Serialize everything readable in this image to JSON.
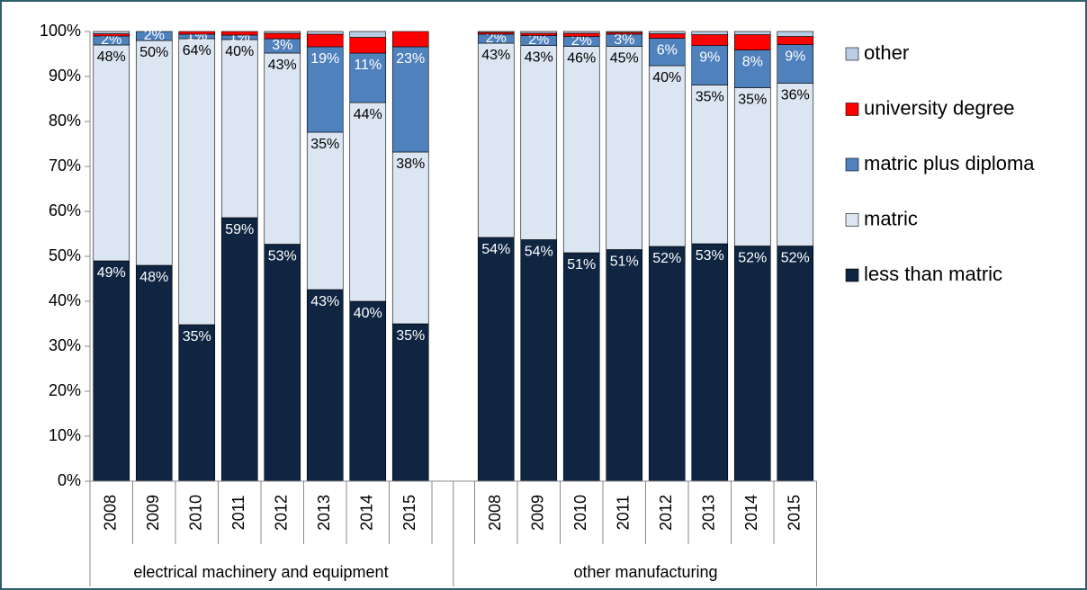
{
  "chart_data": {
    "type": "stacked_bar",
    "groups": [
      {
        "name": "electrical machinery and equipment",
        "categories": [
          "2008",
          "2009",
          "2010",
          "2011",
          "2012",
          "2013",
          "2014",
          "2015"
        ]
      },
      {
        "name": "other manufacturing",
        "categories": [
          "2008",
          "2009",
          "2010",
          "2011",
          "2012",
          "2013",
          "2014",
          "2015"
        ]
      }
    ],
    "series": [
      {
        "name": "less than matric",
        "color": "#0f2542",
        "label_color": "#ffffff",
        "values": [
          49,
          48,
          34.8,
          58.6,
          52.7,
          42.6,
          40,
          35,
          54.2,
          53.7,
          50.8,
          51.5,
          52.2,
          52.8,
          52.3,
          52.3
        ],
        "value_labels": [
          "49%",
          "48%",
          "35%",
          "59%",
          "53%",
          "43%",
          "40%",
          "35%",
          "54%",
          "54%",
          "51%",
          "51%",
          "52%",
          "53%",
          "52%",
          "52%"
        ]
      },
      {
        "name": "matric",
        "color": "#dce6f2",
        "label_color": "#000000",
        "values": [
          48,
          50,
          63.6,
          39.6,
          42.5,
          35,
          44.2,
          38.2,
          43.2,
          43.2,
          45.9,
          45.2,
          40.2,
          35.3,
          35.2,
          36.2
        ],
        "value_labels": [
          "48%",
          "50%",
          "64%",
          "40%",
          "43%",
          "35%",
          "44%",
          "38%",
          "43%",
          "43%",
          "46%",
          "45%",
          "40%",
          "35%",
          "35%",
          "36%"
        ]
      },
      {
        "name": "matric plus diploma",
        "color": "#4f81bd",
        "label_color": "#ffffff",
        "values": [
          2,
          2,
          1,
          1,
          3.2,
          19,
          11,
          23.4,
          2,
          2.2,
          2.2,
          2.7,
          6.1,
          8.8,
          8.4,
          8.6
        ],
        "value_labels": [
          "2%",
          "2%",
          "1%",
          "1%",
          "3%",
          "19%",
          "11%",
          "23%",
          "2%",
          "2%",
          "2%",
          "3%",
          "6%",
          "9%",
          "8%",
          "9%"
        ]
      },
      {
        "name": "university degree",
        "color": "#ff0000",
        "values": [
          0.5,
          0,
          0.6,
          0.8,
          1.2,
          2.8,
          3.5,
          3.4,
          0.4,
          0.5,
          0.7,
          0.4,
          1,
          2.4,
          3.4,
          1.8
        ]
      },
      {
        "name": "other",
        "color": "#b9cde5",
        "values": [
          0.5,
          0,
          0,
          0,
          0.4,
          0.6,
          1.3,
          0,
          0.2,
          0.4,
          0.4,
          0.2,
          0.5,
          0.7,
          0.7,
          1.1
        ]
      }
    ],
    "ylim": [
      0,
      100
    ],
    "yticks": [
      {
        "value": 0,
        "label": "0%"
      },
      {
        "value": 10,
        "label": "10%"
      },
      {
        "value": 20,
        "label": "20%"
      },
      {
        "value": 30,
        "label": "30%"
      },
      {
        "value": 40,
        "label": "40%"
      },
      {
        "value": 50,
        "label": "50%"
      },
      {
        "value": 60,
        "label": "60%"
      },
      {
        "value": 70,
        "label": "70%"
      },
      {
        "value": 80,
        "label": "80%"
      },
      {
        "value": 90,
        "label": "90%"
      },
      {
        "value": 100,
        "label": "100%"
      }
    ],
    "legend": "right"
  }
}
